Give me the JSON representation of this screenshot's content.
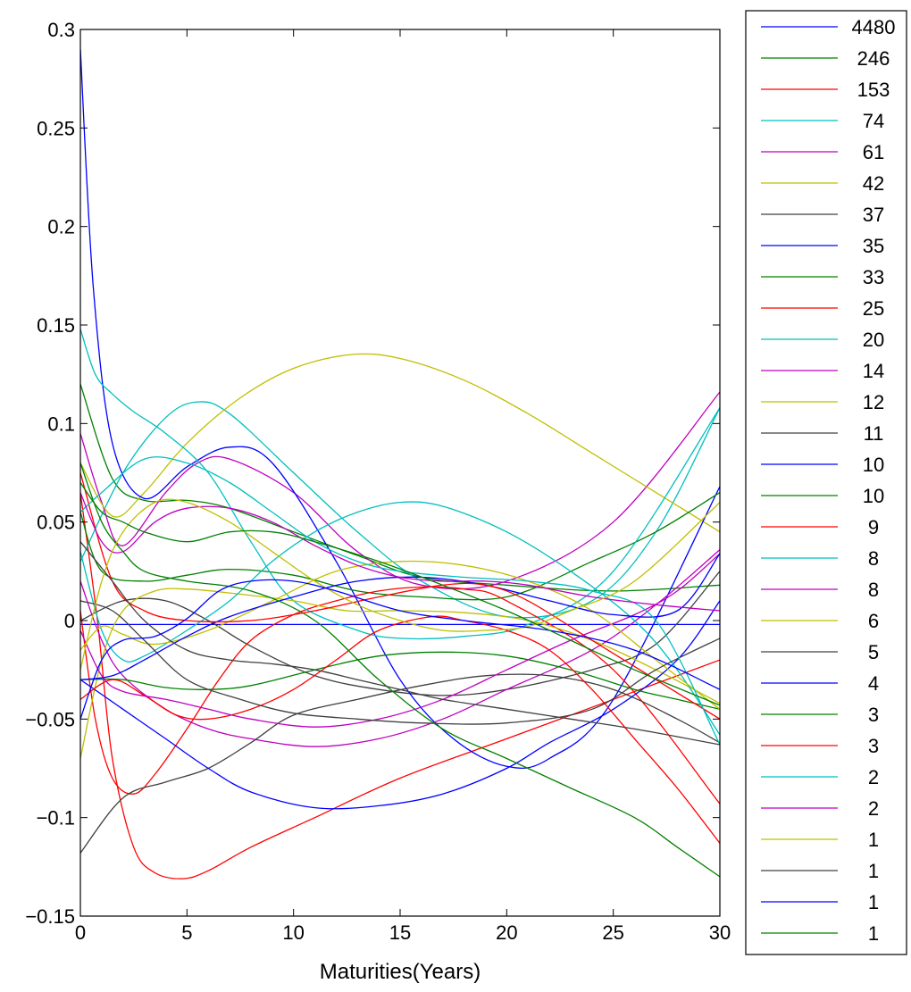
{
  "chart_data": {
    "type": "line",
    "title": "",
    "xlabel": "Maturities(Years)",
    "ylabel": "",
    "xlim": [
      0,
      30
    ],
    "ylim": [
      -0.15,
      0.3
    ],
    "xticks": [
      0,
      5,
      10,
      15,
      20,
      25,
      30
    ],
    "xtick_labels": [
      "0",
      "5",
      "10",
      "15",
      "20",
      "25",
      "30"
    ],
    "yticks": [
      -0.15,
      -0.1,
      -0.05,
      0,
      0.05,
      0.1,
      0.15,
      0.2,
      0.25,
      0.3
    ],
    "ytick_labels": [
      "−0.15",
      "−0.1",
      "−0.05",
      "0",
      "0.05",
      "0.1",
      "0.15",
      "0.2",
      "0.25",
      "0.3"
    ],
    "grid": false,
    "legend_position": "outside-right",
    "series": [
      {
        "name": "4480",
        "color": "#0000ff",
        "x": [
          0,
          30
        ],
        "y": [
          -0.002,
          -0.002
        ]
      },
      {
        "name": "246",
        "color": "#008000",
        "x": [
          0,
          1.5,
          3,
          5,
          7,
          10,
          13,
          16,
          20,
          25,
          30
        ],
        "y": [
          0.12,
          0.072,
          0.061,
          0.061,
          0.057,
          0.045,
          0.033,
          0.022,
          0.018,
          0.015,
          0.018
        ]
      },
      {
        "name": "153",
        "color": "#ff0000",
        "x": [
          0,
          0.8,
          1.5,
          2.5,
          3.5,
          4.8,
          6,
          8,
          11,
          15,
          20,
          25,
          30
        ],
        "y": [
          0.065,
          0.0,
          -0.07,
          -0.115,
          -0.128,
          -0.131,
          -0.127,
          -0.115,
          -0.1,
          -0.08,
          -0.06,
          -0.04,
          -0.02
        ]
      },
      {
        "name": "74",
        "color": "#00bfbf",
        "x": [
          0,
          2,
          4,
          5.5,
          7,
          10,
          13,
          16,
          20,
          24,
          27,
          30
        ],
        "y": [
          0.03,
          0.075,
          0.103,
          0.111,
          0.105,
          0.075,
          0.045,
          0.02,
          0.002,
          0.01,
          0.045,
          0.108
        ]
      },
      {
        "name": "61",
        "color": "#bf00bf",
        "x": [
          0,
          1,
          2,
          4,
          5.5,
          7,
          10,
          13,
          16,
          20,
          25,
          30
        ],
        "y": [
          0.095,
          0.06,
          0.038,
          0.065,
          0.08,
          0.082,
          0.065,
          0.035,
          0.018,
          0.02,
          0.05,
          0.116
        ]
      },
      {
        "name": "42",
        "color": "#bfbf00",
        "x": [
          0,
          1.5,
          3,
          5,
          7.5,
          10,
          12.7,
          15,
          18,
          21,
          24,
          27,
          30
        ],
        "y": [
          0.08,
          0.053,
          0.065,
          0.09,
          0.113,
          0.128,
          0.135,
          0.133,
          0.122,
          0.105,
          0.085,
          0.065,
          0.045
        ]
      },
      {
        "name": "37",
        "color": "#404040",
        "x": [
          0,
          2,
          4,
          6,
          8,
          11,
          14,
          17,
          20,
          24,
          27,
          30
        ],
        "y": [
          0.0,
          0.01,
          0.01,
          0.0,
          -0.013,
          -0.028,
          -0.035,
          -0.038,
          -0.035,
          -0.025,
          -0.012,
          0.025
        ]
      },
      {
        "name": "35",
        "color": "#0000ff",
        "x": [
          0,
          0.6,
          1.5,
          3,
          5,
          7,
          9,
          12,
          15,
          17.5,
          20,
          22,
          25,
          30
        ],
        "y": [
          0.29,
          0.17,
          0.09,
          0.062,
          0.078,
          0.088,
          0.08,
          0.03,
          -0.03,
          -0.06,
          -0.074,
          -0.07,
          -0.04,
          0.068
        ]
      },
      {
        "name": "33",
        "color": "#008000",
        "x": [
          0,
          1,
          3,
          5,
          7,
          10,
          13,
          16,
          20,
          24,
          27,
          30
        ],
        "y": [
          0.055,
          0.025,
          0.02,
          0.023,
          0.026,
          0.023,
          0.015,
          0.012,
          0.012,
          0.03,
          0.045,
          0.065
        ]
      },
      {
        "name": "25",
        "color": "#ff0000",
        "x": [
          0,
          0.7,
          1.5,
          2.5,
          3.5,
          5,
          6.5,
          8,
          10,
          12,
          14,
          16,
          18,
          20,
          25,
          30
        ],
        "y": [
          0.005,
          -0.05,
          -0.08,
          -0.088,
          -0.078,
          -0.055,
          -0.03,
          -0.01,
          0.003,
          0.01,
          0.015,
          0.017,
          0.016,
          0.01,
          -0.025,
          -0.093
        ]
      },
      {
        "name": "20",
        "color": "#00bfbf",
        "x": [
          0,
          0.7,
          1.5,
          2.5,
          4,
          6,
          8,
          10,
          13,
          15,
          18,
          21,
          25,
          30
        ],
        "y": [
          0.148,
          0.125,
          0.115,
          0.106,
          0.095,
          0.075,
          0.04,
          0.01,
          -0.005,
          -0.009,
          -0.008,
          -0.002,
          0.025,
          0.108
        ]
      },
      {
        "name": "14",
        "color": "#bf00bf",
        "x": [
          0,
          1,
          2,
          4,
          6,
          8,
          11,
          14,
          17,
          20,
          24,
          27,
          30
        ],
        "y": [
          0.02,
          -0.01,
          -0.028,
          -0.045,
          -0.055,
          -0.06,
          -0.064,
          -0.06,
          -0.05,
          -0.035,
          -0.015,
          0.008,
          0.036
        ]
      },
      {
        "name": "12",
        "color": "#bfbf00",
        "x": [
          0,
          1,
          2,
          3.5,
          5,
          7,
          10,
          12.5,
          15,
          18,
          21,
          24,
          27,
          30
        ],
        "y": [
          -0.07,
          -0.02,
          0.005,
          0.015,
          0.016,
          0.014,
          0.01,
          0.005,
          0.005,
          0.004,
          0.0,
          -0.01,
          -0.025,
          -0.042
        ]
      },
      {
        "name": "11",
        "color": "#404040",
        "x": [
          0,
          2,
          4,
          6,
          8,
          10,
          13,
          16,
          19,
          22,
          25,
          28,
          30
        ],
        "y": [
          -0.118,
          -0.09,
          -0.082,
          -0.075,
          -0.062,
          -0.048,
          -0.04,
          -0.033,
          -0.028,
          -0.028,
          -0.035,
          -0.05,
          -0.062
        ]
      },
      {
        "name": "10",
        "color": "#0000ff",
        "x": [
          0,
          2,
          4,
          6,
          8,
          11,
          14,
          17,
          20,
          22,
          25,
          28,
          30
        ],
        "y": [
          -0.03,
          -0.045,
          -0.06,
          -0.075,
          -0.087,
          -0.095,
          -0.094,
          -0.088,
          -0.075,
          -0.062,
          -0.045,
          -0.02,
          0.01
        ]
      },
      {
        "name": "10",
        "color": "#008000",
        "x": [
          0,
          2,
          4,
          6,
          8,
          11,
          14,
          17,
          20,
          23,
          26,
          28,
          30
        ],
        "y": [
          -0.03,
          -0.03,
          -0.034,
          -0.035,
          -0.033,
          -0.025,
          -0.018,
          -0.016,
          -0.018,
          -0.025,
          -0.035,
          -0.04,
          -0.045
        ]
      },
      {
        "name": "9",
        "color": "#ff0000",
        "x": [
          0,
          1.5,
          3,
          4.5,
          6,
          8,
          10,
          12,
          14,
          16.5,
          18,
          20,
          22,
          24,
          26,
          28,
          30
        ],
        "y": [
          -0.04,
          -0.03,
          -0.038,
          -0.048,
          -0.05,
          -0.045,
          -0.035,
          -0.02,
          -0.005,
          0.002,
          0.0,
          -0.005,
          -0.015,
          -0.035,
          -0.06,
          -0.085,
          -0.113
        ]
      },
      {
        "name": "8",
        "color": "#00bfbf",
        "x": [
          0,
          1,
          2,
          3,
          5,
          7,
          9,
          11,
          13,
          15,
          17,
          20,
          23,
          26,
          28,
          30
        ],
        "y": [
          0.035,
          -0.005,
          -0.02,
          -0.018,
          -0.005,
          0.01,
          0.03,
          0.045,
          0.055,
          0.06,
          0.058,
          0.045,
          0.025,
          0.0,
          -0.025,
          -0.058
        ]
      },
      {
        "name": "8",
        "color": "#bf00bf",
        "x": [
          0,
          1,
          2,
          4,
          6,
          8,
          11,
          14,
          17,
          20,
          23,
          26,
          28,
          30
        ],
        "y": [
          -0.005,
          -0.028,
          -0.036,
          -0.04,
          -0.045,
          -0.05,
          -0.054,
          -0.05,
          -0.04,
          -0.025,
          -0.01,
          0.003,
          0.015,
          0.034
        ]
      },
      {
        "name": "6",
        "color": "#bfbf00",
        "x": [
          0,
          1,
          2,
          3.5,
          6,
          9,
          12,
          15,
          18,
          21,
          24,
          27,
          30
        ],
        "y": [
          -0.015,
          -0.003,
          -0.007,
          -0.012,
          -0.005,
          0.01,
          0.025,
          0.03,
          0.028,
          0.02,
          0.005,
          -0.02,
          -0.045
        ]
      },
      {
        "name": "5",
        "color": "#404040",
        "x": [
          0,
          1.5,
          3,
          5,
          7.5,
          10,
          13,
          16,
          20,
          24,
          27,
          30
        ],
        "y": [
          0.01,
          0.005,
          -0.01,
          -0.03,
          -0.04,
          -0.047,
          -0.05,
          -0.052,
          -0.052,
          -0.045,
          -0.025,
          -0.009
        ]
      },
      {
        "name": "4",
        "color": "#0000ff",
        "x": [
          0,
          1.5,
          3,
          5,
          7,
          10,
          13,
          16,
          19,
          22,
          25,
          28,
          30
        ],
        "y": [
          -0.03,
          -0.028,
          -0.02,
          -0.008,
          0.002,
          0.012,
          0.02,
          0.022,
          0.018,
          0.01,
          0.003,
          0.005,
          0.034
        ]
      },
      {
        "name": "3",
        "color": "#008000",
        "x": [
          0,
          1,
          2,
          3,
          5,
          8,
          11,
          14,
          17,
          20,
          23,
          26,
          28,
          30
        ],
        "y": [
          0.08,
          0.05,
          0.035,
          0.025,
          0.02,
          0.015,
          0.0,
          -0.03,
          -0.055,
          -0.07,
          -0.085,
          -0.1,
          -0.115,
          -0.13
        ]
      },
      {
        "name": "3",
        "color": "#ff0000",
        "x": [
          0,
          1.5,
          3,
          5,
          8,
          11,
          14,
          17,
          19,
          21,
          24,
          27,
          30
        ],
        "y": [
          0.075,
          0.02,
          0.005,
          0.0,
          0.0,
          0.005,
          0.012,
          0.018,
          0.018,
          0.01,
          -0.01,
          -0.03,
          -0.05
        ]
      },
      {
        "name": "2",
        "color": "#00bfbf",
        "x": [
          0,
          1,
          3,
          5,
          7,
          9,
          11,
          13,
          15,
          18,
          21,
          24,
          27,
          30
        ],
        "y": [
          0.055,
          0.065,
          0.082,
          0.08,
          0.07,
          0.055,
          0.04,
          0.03,
          0.025,
          0.022,
          0.02,
          0.015,
          0.0,
          -0.063
        ]
      },
      {
        "name": "2",
        "color": "#bf00bf",
        "x": [
          0,
          1,
          2,
          3.5,
          5,
          7,
          9,
          11,
          13,
          15,
          17,
          19,
          21,
          24,
          27,
          30
        ],
        "y": [
          0.065,
          0.04,
          0.035,
          0.05,
          0.057,
          0.057,
          0.05,
          0.038,
          0.028,
          0.022,
          0.02,
          0.02,
          0.018,
          0.012,
          0.008,
          0.005
        ]
      },
      {
        "name": "1",
        "color": "#bfbf00",
        "x": [
          0,
          1,
          2,
          3.5,
          5,
          7,
          9,
          11,
          13,
          15,
          17,
          19,
          21,
          23,
          26,
          30
        ],
        "y": [
          -0.025,
          0.02,
          0.045,
          0.06,
          0.06,
          0.05,
          0.035,
          0.02,
          0.008,
          0.0,
          -0.005,
          -0.005,
          -0.003,
          0.005,
          0.02,
          0.06
        ]
      },
      {
        "name": "1",
        "color": "#404040",
        "x": [
          0,
          1.5,
          3,
          5,
          7,
          9,
          11,
          13,
          15,
          17,
          20,
          23,
          26,
          30
        ],
        "y": [
          0.04,
          0.02,
          0.0,
          -0.015,
          -0.02,
          -0.022,
          -0.025,
          -0.03,
          -0.035,
          -0.04,
          -0.045,
          -0.05,
          -0.055,
          -0.063
        ]
      },
      {
        "name": "1",
        "color": "#0000ff",
        "x": [
          0,
          1,
          2,
          3.5,
          5,
          6.5,
          8,
          10,
          12,
          15,
          18,
          22,
          26,
          30
        ],
        "y": [
          -0.05,
          -0.02,
          -0.01,
          -0.008,
          0.001,
          0.015,
          0.02,
          0.02,
          0.015,
          0.005,
          0.0,
          -0.005,
          -0.015,
          -0.035
        ]
      },
      {
        "name": "1",
        "color": "#008000",
        "x": [
          0,
          1,
          2,
          3,
          5,
          7,
          9,
          11,
          14,
          17,
          20,
          23,
          26,
          30
        ],
        "y": [
          0.07,
          0.055,
          0.05,
          0.045,
          0.04,
          0.045,
          0.045,
          0.04,
          0.03,
          0.018,
          0.005,
          -0.01,
          -0.025,
          -0.043
        ]
      }
    ]
  }
}
